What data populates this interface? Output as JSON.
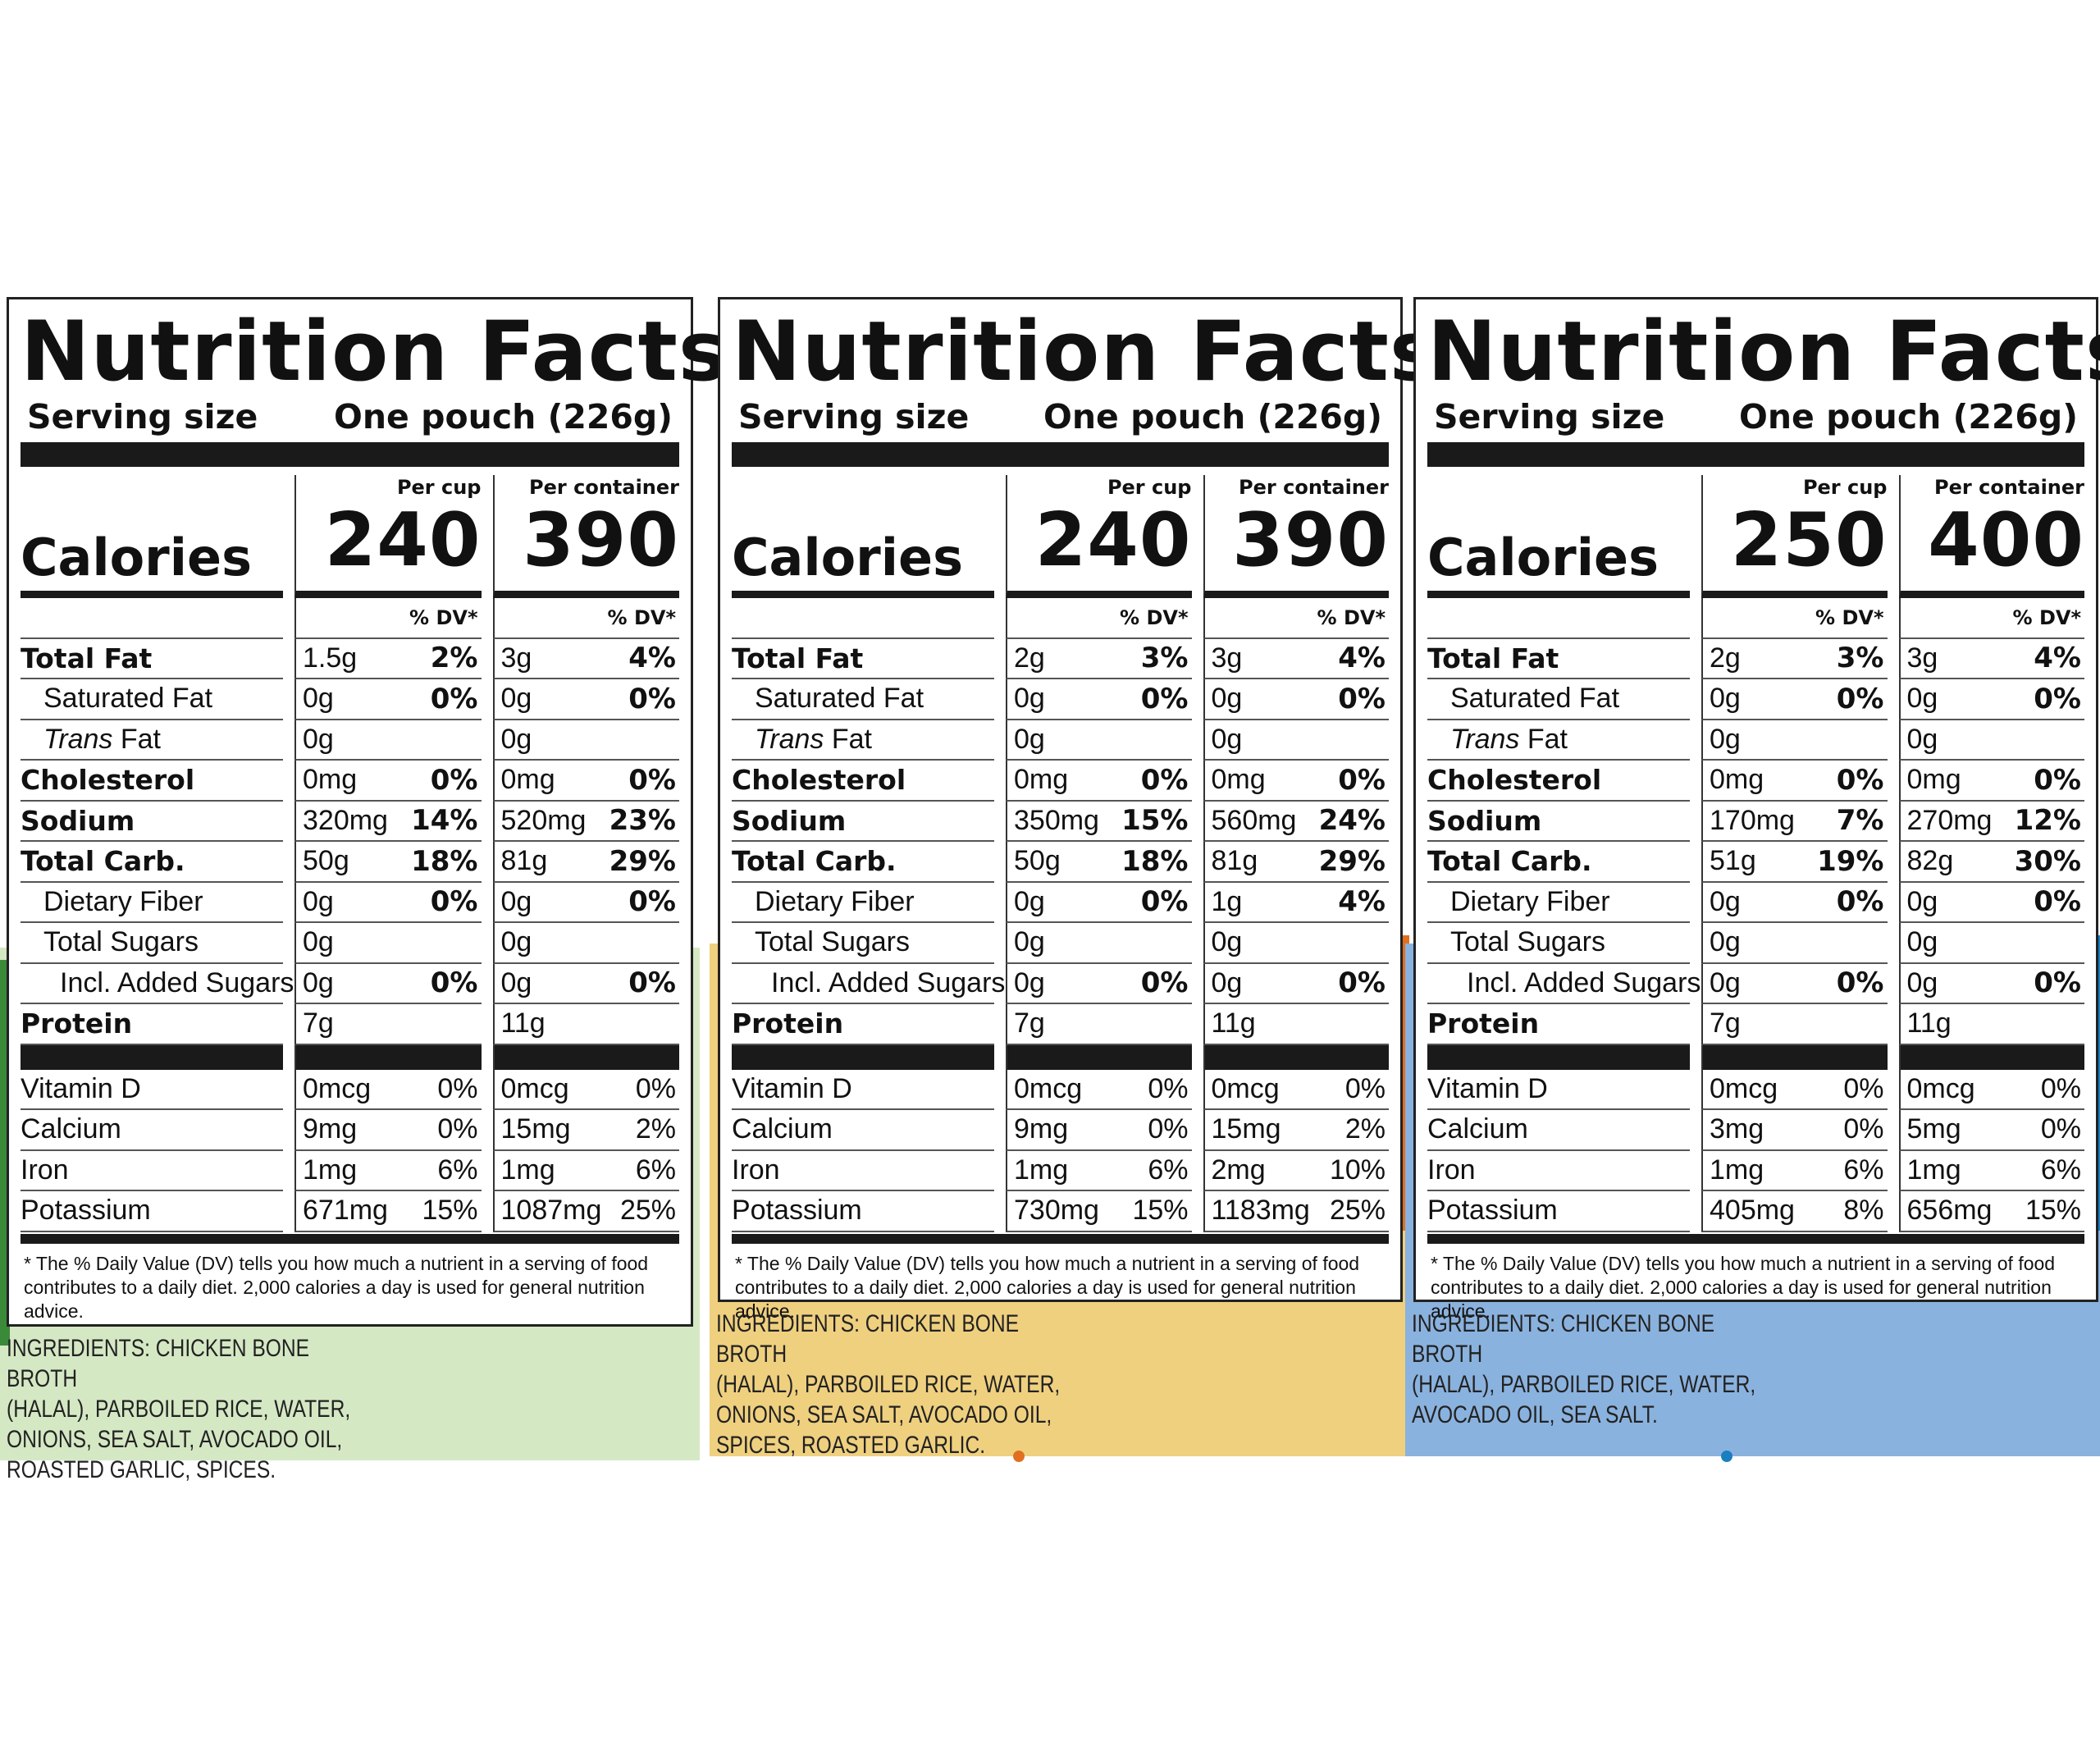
{
  "panels": [
    {
      "bg_color": "#d5e8c4",
      "accent": "#3a8a3a",
      "title": "Nutrition Facts",
      "serving_label": "Serving size",
      "serving_value": "One pouch (226g)",
      "calories_label": "Calories",
      "per_cup_label": "Per cup",
      "per_container_label": "Per container",
      "calories_cup": "240",
      "calories_container": "390",
      "dv_header": "% DV*",
      "rows": [
        {
          "label": "Total Fat",
          "style": "bold",
          "cup": "1.5g",
          "cup_dv": "2%",
          "cont": "3g",
          "cont_dv": "4%"
        },
        {
          "label": "Saturated Fat",
          "style": "ind1",
          "cup": "0g",
          "cup_dv": "0%",
          "cont": "0g",
          "cont_dv": "0%"
        },
        {
          "label": "Trans Fat",
          "style": "trans",
          "cup": "0g",
          "cup_dv": "",
          "cont": "0g",
          "cont_dv": ""
        },
        {
          "label": "Cholesterol",
          "style": "bold",
          "cup": "0mg",
          "cup_dv": "0%",
          "cont": "0mg",
          "cont_dv": "0%"
        },
        {
          "label": "Sodium",
          "style": "bold",
          "cup": "320mg",
          "cup_dv": "14%",
          "cont": "520mg",
          "cont_dv": "23%"
        },
        {
          "label": "Total Carb.",
          "style": "bold",
          "cup": "50g",
          "cup_dv": "18%",
          "cont": "81g",
          "cont_dv": "29%"
        },
        {
          "label": "Dietary Fiber",
          "style": "ind1",
          "cup": "0g",
          "cup_dv": "0%",
          "cont": "0g",
          "cont_dv": "0%"
        },
        {
          "label": "Total Sugars",
          "style": "ind1",
          "cup": "0g",
          "cup_dv": "",
          "cont": "0g",
          "cont_dv": ""
        },
        {
          "label": "Incl. Added Sugars",
          "style": "ind2",
          "cup": "0g",
          "cup_dv": "0%",
          "cont": "0g",
          "cont_dv": "0%"
        },
        {
          "label": "Protein",
          "style": "bold",
          "cup": "7g",
          "cup_dv": "",
          "cont": "11g",
          "cont_dv": ""
        }
      ],
      "vitamins": [
        {
          "label": "Vitamin D",
          "cup": "0mcg",
          "cup_dv": "0%",
          "cont": "0mcg",
          "cont_dv": "0%"
        },
        {
          "label": "Calcium",
          "cup": "9mg",
          "cup_dv": "0%",
          "cont": "15mg",
          "cont_dv": "2%"
        },
        {
          "label": "Iron",
          "cup": "1mg",
          "cup_dv": "6%",
          "cont": "1mg",
          "cont_dv": "6%"
        },
        {
          "label": "Potassium",
          "cup": "671mg",
          "cup_dv": "15%",
          "cont": "1087mg",
          "cont_dv": "25%"
        }
      ],
      "footnote": "* The % Daily Value (DV) tells you how much a nutrient in a serving of food contributes to a daily diet. 2,000 calories a day is used for general nutrition advice.",
      "ingredients": "INGREDIENTS: CHICKEN BONE BROTH\n(HALAL), PARBOILED RICE, WATER,\nONIONS, SEA SALT, AVOCADO OIL,\nROASTED GARLIC, SPICES."
    },
    {
      "bg_color": "#efd07f",
      "accent": "#e07020",
      "title": "Nutrition Facts",
      "serving_label": "Serving size",
      "serving_value": "One pouch (226g)",
      "calories_label": "Calories",
      "per_cup_label": "Per cup",
      "per_container_label": "Per container",
      "calories_cup": "240",
      "calories_container": "390",
      "dv_header": "% DV*",
      "rows": [
        {
          "label": "Total Fat",
          "style": "bold",
          "cup": "2g",
          "cup_dv": "3%",
          "cont": "3g",
          "cont_dv": "4%"
        },
        {
          "label": "Saturated Fat",
          "style": "ind1",
          "cup": "0g",
          "cup_dv": "0%",
          "cont": "0g",
          "cont_dv": "0%"
        },
        {
          "label": "Trans Fat",
          "style": "trans",
          "cup": "0g",
          "cup_dv": "",
          "cont": "0g",
          "cont_dv": ""
        },
        {
          "label": "Cholesterol",
          "style": "bold",
          "cup": "0mg",
          "cup_dv": "0%",
          "cont": "0mg",
          "cont_dv": "0%"
        },
        {
          "label": "Sodium",
          "style": "bold",
          "cup": "350mg",
          "cup_dv": "15%",
          "cont": "560mg",
          "cont_dv": "24%"
        },
        {
          "label": "Total Carb.",
          "style": "bold",
          "cup": "50g",
          "cup_dv": "18%",
          "cont": "81g",
          "cont_dv": "29%"
        },
        {
          "label": "Dietary Fiber",
          "style": "ind1",
          "cup": "0g",
          "cup_dv": "0%",
          "cont": "1g",
          "cont_dv": "4%"
        },
        {
          "label": "Total Sugars",
          "style": "ind1",
          "cup": "0g",
          "cup_dv": "",
          "cont": "0g",
          "cont_dv": ""
        },
        {
          "label": "Incl. Added Sugars",
          "style": "ind2",
          "cup": "0g",
          "cup_dv": "0%",
          "cont": "0g",
          "cont_dv": "0%"
        },
        {
          "label": "Protein",
          "style": "bold",
          "cup": "7g",
          "cup_dv": "",
          "cont": "11g",
          "cont_dv": ""
        }
      ],
      "vitamins": [
        {
          "label": "Vitamin D",
          "cup": "0mcg",
          "cup_dv": "0%",
          "cont": "0mcg",
          "cont_dv": "0%"
        },
        {
          "label": "Calcium",
          "cup": "9mg",
          "cup_dv": "0%",
          "cont": "15mg",
          "cont_dv": "2%"
        },
        {
          "label": "Iron",
          "cup": "1mg",
          "cup_dv": "6%",
          "cont": "2mg",
          "cont_dv": "10%"
        },
        {
          "label": "Potassium",
          "cup": "730mg",
          "cup_dv": "15%",
          "cont": "1183mg",
          "cont_dv": "25%"
        }
      ],
      "footnote": "* The % Daily Value (DV) tells you how much a nutrient in a serving of food contributes to a daily diet. 2,000 calories a day is used for general nutrition advice.",
      "ingredients": "INGREDIENTS: CHICKEN BONE BROTH\n(HALAL), PARBOILED RICE, WATER,\nONIONS, SEA SALT, AVOCADO OIL,\nSPICES, ROASTED GARLIC."
    },
    {
      "bg_color": "#8ab2de",
      "accent": "#1a7fc0",
      "title": "Nutrition Facts",
      "serving_label": "Serving size",
      "serving_value": "One pouch (226g)",
      "calories_label": "Calories",
      "per_cup_label": "Per cup",
      "per_container_label": "Per container",
      "calories_cup": "250",
      "calories_container": "400",
      "dv_header": "% DV*",
      "rows": [
        {
          "label": "Total Fat",
          "style": "bold",
          "cup": "2g",
          "cup_dv": "3%",
          "cont": "3g",
          "cont_dv": "4%"
        },
        {
          "label": "Saturated Fat",
          "style": "ind1",
          "cup": "0g",
          "cup_dv": "0%",
          "cont": "0g",
          "cont_dv": "0%"
        },
        {
          "label": "Trans Fat",
          "style": "trans",
          "cup": "0g",
          "cup_dv": "",
          "cont": "0g",
          "cont_dv": ""
        },
        {
          "label": "Cholesterol",
          "style": "bold",
          "cup": "0mg",
          "cup_dv": "0%",
          "cont": "0mg",
          "cont_dv": "0%"
        },
        {
          "label": "Sodium",
          "style": "bold",
          "cup": "170mg",
          "cup_dv": "7%",
          "cont": "270mg",
          "cont_dv": "12%"
        },
        {
          "label": "Total Carb.",
          "style": "bold",
          "cup": "51g",
          "cup_dv": "19%",
          "cont": "82g",
          "cont_dv": "30%"
        },
        {
          "label": "Dietary Fiber",
          "style": "ind1",
          "cup": "0g",
          "cup_dv": "0%",
          "cont": "0g",
          "cont_dv": "0%"
        },
        {
          "label": "Total Sugars",
          "style": "ind1",
          "cup": "0g",
          "cup_dv": "",
          "cont": "0g",
          "cont_dv": ""
        },
        {
          "label": "Incl. Added Sugars",
          "style": "ind2",
          "cup": "0g",
          "cup_dv": "0%",
          "cont": "0g",
          "cont_dv": "0%"
        },
        {
          "label": "Protein",
          "style": "bold",
          "cup": "7g",
          "cup_dv": "",
          "cont": "11g",
          "cont_dv": ""
        }
      ],
      "vitamins": [
        {
          "label": "Vitamin D",
          "cup": "0mcg",
          "cup_dv": "0%",
          "cont": "0mcg",
          "cont_dv": "0%"
        },
        {
          "label": "Calcium",
          "cup": "3mg",
          "cup_dv": "0%",
          "cont": "5mg",
          "cont_dv": "0%"
        },
        {
          "label": "Iron",
          "cup": "1mg",
          "cup_dv": "6%",
          "cont": "1mg",
          "cont_dv": "6%"
        },
        {
          "label": "Potassium",
          "cup": "405mg",
          "cup_dv": "8%",
          "cont": "656mg",
          "cont_dv": "15%"
        }
      ],
      "footnote": "* The % Daily Value (DV) tells you how much a nutrient in a serving of food contributes to a daily diet. 2,000 calories a day is used for general nutrition advice.",
      "ingredients": "INGREDIENTS: CHICKEN BONE BROTH\n(HALAL), PARBOILED RICE, WATER,\nAVOCADO OIL, SEA SALT."
    }
  ]
}
